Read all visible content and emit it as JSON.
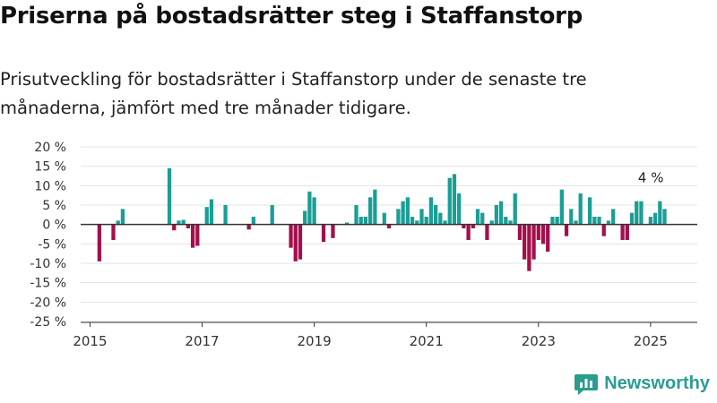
{
  "title": "Priserna på bostadsrätter steg i Staffanstorp",
  "subtitle": "Prisutveckling för bostadsrätter i Staffanstorp under de senaste tre månaderna, jämfört med tre månader tidigare.",
  "brand": {
    "name": "Newsworthy",
    "color": "#2a9d8f",
    "icon": "bar-chart-logo-icon"
  },
  "chart_data": {
    "type": "bar",
    "title": "",
    "xlabel": "",
    "ylabel": "",
    "ylim": [
      -25,
      20
    ],
    "y_ticks": [
      20,
      15,
      10,
      5,
      0,
      -5,
      -10,
      -15,
      -20,
      -25
    ],
    "y_tick_labels": [
      "20 %",
      "15 %",
      "10 %",
      "5 %",
      "0 %",
      "-5 %",
      "-10 %",
      "-15 %",
      "-20 %",
      "-25 %"
    ],
    "x_ticks": [
      "2015",
      "2017",
      "2019",
      "2021",
      "2023",
      "2025"
    ],
    "grid": true,
    "legend": "none",
    "colors": {
      "positive": "#1a9e96",
      "negative": "#a30f4c",
      "zero_line": "#333333",
      "grid": "#e3e3e3"
    },
    "annotation": {
      "text": "4 %",
      "month": "2025-04"
    },
    "x": [
      "2015-01",
      "2015-02",
      "2015-03",
      "2015-04",
      "2015-05",
      "2015-06",
      "2015-07",
      "2015-08",
      "2015-09",
      "2015-10",
      "2015-11",
      "2015-12",
      "2016-01",
      "2016-02",
      "2016-03",
      "2016-04",
      "2016-05",
      "2016-06",
      "2016-07",
      "2016-08",
      "2016-09",
      "2016-10",
      "2016-11",
      "2016-12",
      "2017-01",
      "2017-02",
      "2017-03",
      "2017-04",
      "2017-05",
      "2017-06",
      "2017-07",
      "2017-08",
      "2017-09",
      "2017-10",
      "2017-11",
      "2017-12",
      "2018-01",
      "2018-02",
      "2018-03",
      "2018-04",
      "2018-05",
      "2018-06",
      "2018-07",
      "2018-08",
      "2018-09",
      "2018-10",
      "2018-11",
      "2018-12",
      "2019-01",
      "2019-02",
      "2019-03",
      "2019-04",
      "2019-05",
      "2019-06",
      "2019-07",
      "2019-08",
      "2019-09",
      "2019-10",
      "2019-11",
      "2019-12",
      "2020-01",
      "2020-02",
      "2020-03",
      "2020-04",
      "2020-05",
      "2020-06",
      "2020-07",
      "2020-08",
      "2020-09",
      "2020-10",
      "2020-11",
      "2020-12",
      "2021-01",
      "2021-02",
      "2021-03",
      "2021-04",
      "2021-05",
      "2021-06",
      "2021-07",
      "2021-08",
      "2021-09",
      "2021-10",
      "2021-11",
      "2021-12",
      "2022-01",
      "2022-02",
      "2022-03",
      "2022-04",
      "2022-05",
      "2022-06",
      "2022-07",
      "2022-08",
      "2022-09",
      "2022-10",
      "2022-11",
      "2022-12",
      "2023-01",
      "2023-02",
      "2023-03",
      "2023-04",
      "2023-05",
      "2023-06",
      "2023-07",
      "2023-08",
      "2023-09",
      "2023-10",
      "2023-11",
      "2023-12",
      "2024-01",
      "2024-02",
      "2024-03",
      "2024-04",
      "2024-05",
      "2024-06",
      "2024-07",
      "2024-08",
      "2024-09",
      "2024-10",
      "2024-11",
      "2024-12",
      "2025-01",
      "2025-02",
      "2025-03",
      "2025-04"
    ],
    "values": [
      null,
      null,
      -9.5,
      null,
      null,
      -4,
      1,
      4,
      null,
      null,
      null,
      null,
      null,
      null,
      null,
      null,
      null,
      14.5,
      -1.5,
      1,
      1.2,
      -1,
      -6,
      -5.5,
      null,
      4.5,
      6.5,
      null,
      null,
      5,
      null,
      null,
      null,
      null,
      -1.3,
      2,
      null,
      null,
      null,
      5,
      null,
      null,
      null,
      -6,
      -9.5,
      -9,
      3.5,
      8.5,
      7,
      null,
      -4.5,
      null,
      -3.5,
      null,
      null,
      0.5,
      null,
      5,
      2,
      2,
      7,
      9,
      null,
      3,
      -1,
      null,
      4,
      6,
      7,
      2,
      1,
      4,
      2,
      7,
      5,
      3,
      1,
      12,
      13,
      8,
      -1,
      -4,
      -1,
      4,
      3,
      -4,
      1,
      5,
      6,
      2,
      1,
      8,
      -4,
      -9,
      -12,
      -9,
      -4,
      -5,
      -7,
      2,
      2,
      9,
      -3,
      4,
      1,
      8,
      null,
      7,
      2,
      2,
      -3,
      1,
      4,
      null,
      -4,
      -4,
      3,
      6,
      6,
      null,
      2,
      3,
      6,
      4
    ]
  }
}
